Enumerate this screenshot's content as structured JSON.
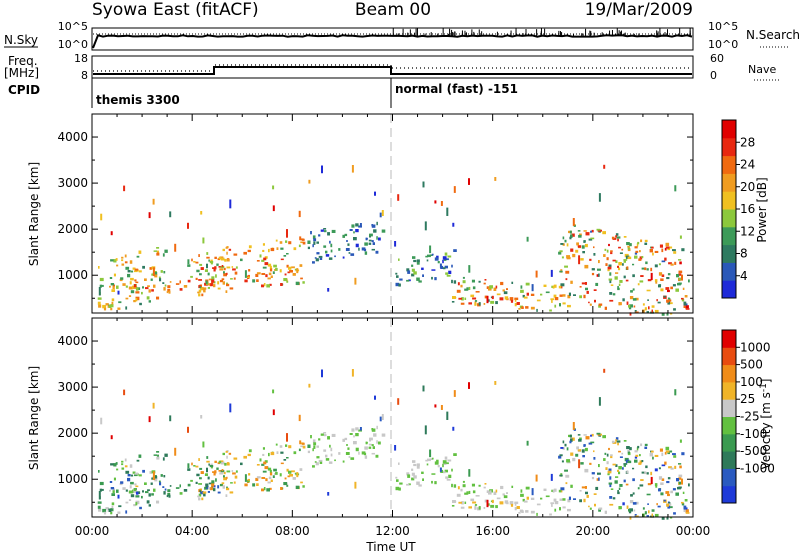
{
  "header": {
    "title_left": "Syowa East (fitACF)",
    "title_center": "Beam 00",
    "title_right": "19/Mar/2009"
  },
  "top_panels": {
    "nsky_label": "N.Sky",
    "nsearch_label": "N.Search",
    "nsky_ticks": [
      "10^5",
      "10^0"
    ],
    "nsearch_ticks": [
      "10^5",
      "10^0"
    ],
    "freq_label_1": "Freq.",
    "freq_label_2": "[MHz]",
    "freq_ticks": [
      "18",
      "8"
    ],
    "nave_label": "Nave",
    "nave_ticks": [
      "60",
      "0"
    ],
    "cpid_label": "CPID",
    "cpid_mode_1": "themis 3300",
    "cpid_mode_2": "normal (fast) -151"
  },
  "x_axis": {
    "label": "Time UT",
    "ticks": [
      "00:00",
      "04:00",
      "08:00",
      "12:00",
      "16:00",
      "20:00",
      "00:00"
    ]
  },
  "colors": {
    "power": [
      "#1e2ad8",
      "#2a58b8",
      "#2e7a60",
      "#3c9a58",
      "#8cc83c",
      "#f0c020",
      "#f09c20",
      "#f06a10",
      "#e82810",
      "#e00000"
    ],
    "velocity": [
      "#1e3ad8",
      "#2a5ac0",
      "#2e7a5a",
      "#3a9a50",
      "#62c040",
      "#c8c8c8",
      "#f0b428",
      "#f08c18",
      "#e84c10",
      "#e00000"
    ]
  },
  "chart_data": [
    {
      "type": "heatmap",
      "quantity": "power",
      "ylabel": "Slant Range [km]",
      "xlabel": "",
      "x_range_hours": [
        0,
        24
      ],
      "ylim": [
        180,
        4500
      ],
      "yticks": [
        "1000",
        "2000",
        "3000",
        "4000"
      ],
      "colorbar_label": "Power [dB]",
      "colorbar_ticks": [
        "4",
        "8",
        "12",
        "16",
        "20",
        "24",
        "28"
      ],
      "colorbar_range": [
        0,
        32
      ],
      "clusters": [
        {
          "t0": 0.2,
          "t1": 2.9,
          "r0": 350,
          "r1": 1500,
          "v0": 8,
          "v1": 24
        },
        {
          "t0": 1.6,
          "t1": 5.2,
          "r0": 650,
          "r1": 950,
          "v0": 14,
          "v1": 30
        },
        {
          "t0": 3.8,
          "t1": 8.6,
          "r0": 700,
          "r1": 1700,
          "v0": 10,
          "v1": 28
        },
        {
          "t0": 8.6,
          "t1": 11.6,
          "r0": 1400,
          "r1": 2100,
          "v0": 2,
          "v1": 12
        },
        {
          "t0": 12.0,
          "t1": 14.5,
          "r0": 900,
          "r1": 1500,
          "v0": 2,
          "v1": 14
        },
        {
          "t0": 14.2,
          "t1": 19.0,
          "r0": 300,
          "r1": 900,
          "v0": 6,
          "v1": 28
        },
        {
          "t0": 18.6,
          "t1": 23.8,
          "r0": 200,
          "r1": 1900,
          "v0": 6,
          "v1": 30
        }
      ]
    },
    {
      "type": "heatmap",
      "quantity": "velocity",
      "ylabel": "Slant Range [km]",
      "xlabel": "Time UT",
      "x_range_hours": [
        0,
        24
      ],
      "ylim": [
        180,
        4500
      ],
      "yticks": [
        "1000",
        "2000",
        "3000",
        "4000"
      ],
      "colorbar_label": "Velocity [m s^-1]",
      "colorbar_ticks": [
        "1000",
        "500",
        "100",
        "25",
        "-25",
        "-100",
        "-500",
        "-1000"
      ],
      "colorbar_range": [
        -1200,
        1200
      ],
      "clusters": [
        {
          "t0": 0.2,
          "t1": 2.9,
          "r0": 350,
          "r1": 1500,
          "v0": -900,
          "v1": 300
        },
        {
          "t0": 1.6,
          "t1": 5.2,
          "r0": 650,
          "r1": 950,
          "v0": -1000,
          "v1": -100
        },
        {
          "t0": 3.8,
          "t1": 8.6,
          "r0": 700,
          "r1": 1700,
          "v0": -600,
          "v1": 700
        },
        {
          "t0": 8.6,
          "t1": 11.6,
          "r0": 1400,
          "r1": 2100,
          "v0": -20,
          "v1": 20
        },
        {
          "t0": 12.0,
          "t1": 14.5,
          "r0": 900,
          "r1": 1500,
          "v0": -20,
          "v1": 20
        },
        {
          "t0": 14.2,
          "t1": 19.0,
          "r0": 300,
          "r1": 900,
          "v0": -200,
          "v1": 300
        },
        {
          "t0": 18.6,
          "t1": 23.8,
          "r0": 200,
          "r1": 1900,
          "v0": -1000,
          "v1": 600
        }
      ]
    }
  ]
}
